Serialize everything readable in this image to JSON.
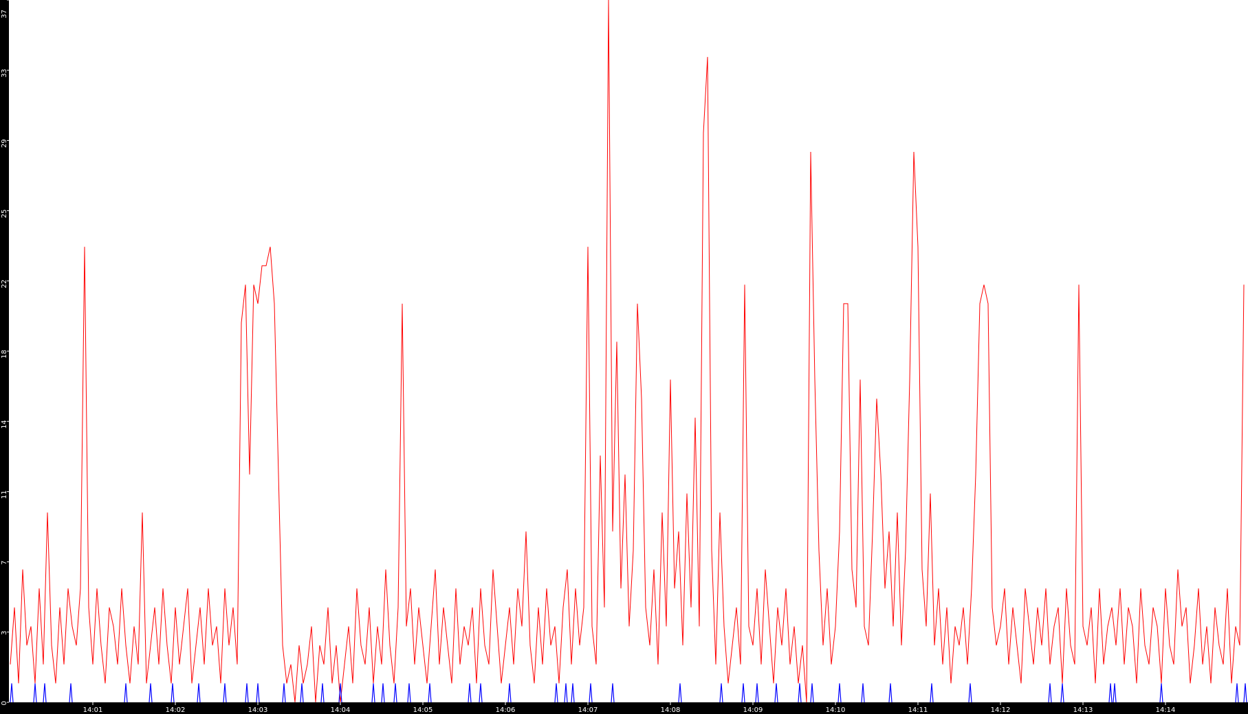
{
  "chart_data": {
    "type": "line",
    "title": "",
    "xlabel": "",
    "ylabel": "",
    "ylim": [
      0,
      37
    ],
    "xlim": [
      "14:00:00",
      "14:15:00"
    ],
    "grid": false,
    "legend": "none",
    "y_tick_labels": [
      "0",
      "3",
      "7",
      "11",
      "14",
      "18",
      "22",
      "25",
      "29",
      "33",
      "37"
    ],
    "x_tick_labels": [
      "14:01",
      "14:02",
      "14:03",
      "14:04",
      "14:05",
      "14:06",
      "14:07",
      "14:08",
      "14:09",
      "14:10",
      "14:11",
      "14:12",
      "14:13",
      "14:14"
    ],
    "colors": {
      "background": "#ffffff",
      "axis_strip": "#000000",
      "series_red": "#ff0000",
      "series_blue": "#0000ff",
      "tick_text": "#ffffff"
    },
    "series": [
      {
        "color": "#ff0000",
        "x_start": "14:00:00",
        "x_step_seconds": 3,
        "values": [
          2,
          5,
          1,
          7,
          3,
          4,
          1,
          6,
          2,
          10,
          3,
          1,
          5,
          2,
          6,
          4,
          3,
          6,
          24,
          5,
          2,
          6,
          3,
          1,
          5,
          4,
          2,
          6,
          3,
          1,
          4,
          2,
          10,
          1,
          3,
          5,
          2,
          6,
          3,
          1,
          5,
          2,
          4,
          6,
          1,
          3,
          5,
          2,
          6,
          3,
          4,
          1,
          6,
          3,
          5,
          2,
          20,
          22,
          12,
          22,
          21,
          23,
          23,
          24,
          21,
          12,
          3,
          1,
          2,
          0,
          3,
          1,
          2,
          4,
          0,
          3,
          2,
          5,
          1,
          3,
          0,
          2,
          4,
          1,
          6,
          3,
          2,
          5,
          1,
          4,
          2,
          7,
          3,
          1,
          5,
          21,
          4,
          6,
          2,
          5,
          3,
          1,
          4,
          7,
          2,
          5,
          3,
          1,
          6,
          2,
          4,
          3,
          5,
          1,
          6,
          3,
          2,
          7,
          4,
          1,
          3,
          5,
          2,
          6,
          4,
          9,
          3,
          1,
          5,
          2,
          6,
          3,
          4,
          1,
          5,
          7,
          2,
          6,
          3,
          5,
          24,
          4,
          2,
          13,
          5,
          37,
          9,
          19,
          6,
          12,
          4,
          8,
          21,
          16,
          5,
          3,
          7,
          2,
          10,
          4,
          17,
          6,
          9,
          3,
          11,
          5,
          15,
          4,
          30,
          34,
          8,
          2,
          10,
          4,
          1,
          3,
          5,
          2,
          22,
          4,
          3,
          6,
          2,
          7,
          4,
          1,
          5,
          3,
          6,
          2,
          4,
          1,
          3,
          0,
          29,
          17,
          8,
          3,
          6,
          2,
          4,
          9,
          21,
          21,
          7,
          5,
          17,
          4,
          3,
          9,
          16,
          12,
          6,
          9,
          4,
          10,
          3,
          8,
          17,
          29,
          24,
          7,
          4,
          11,
          3,
          6,
          2,
          5,
          1,
          4,
          3,
          5,
          2,
          6,
          12,
          21,
          22,
          21,
          5,
          3,
          4,
          6,
          2,
          5,
          3,
          1,
          6,
          4,
          2,
          5,
          3,
          6,
          2,
          4,
          5,
          1,
          6,
          3,
          2,
          22,
          4,
          3,
          5,
          1,
          6,
          2,
          4,
          5,
          3,
          6,
          2,
          5,
          4,
          1,
          6,
          3,
          2,
          5,
          4,
          1,
          6,
          3,
          2,
          7,
          4,
          5,
          1,
          3,
          6,
          2,
          4,
          1,
          5,
          3,
          2,
          6,
          1,
          4,
          3,
          22
        ]
      },
      {
        "color": "#0000ff",
        "baseline": 0,
        "points": [
          [
            "14:00:01",
            1
          ],
          [
            "14:00:18",
            1
          ],
          [
            "14:00:25",
            1
          ],
          [
            "14:00:44",
            1
          ],
          [
            "14:01:24",
            1
          ],
          [
            "14:01:42",
            1
          ],
          [
            "14:01:58",
            1
          ],
          [
            "14:02:17",
            1
          ],
          [
            "14:02:36",
            1
          ],
          [
            "14:02:52",
            1
          ],
          [
            "14:03:00",
            1
          ],
          [
            "14:03:19",
            1
          ],
          [
            "14:03:32",
            1
          ],
          [
            "14:03:47",
            1
          ],
          [
            "14:04:00",
            1
          ],
          [
            "14:04:24",
            1
          ],
          [
            "14:04:31",
            1
          ],
          [
            "14:04:40",
            1
          ],
          [
            "14:04:50",
            1
          ],
          [
            "14:05:05",
            1
          ],
          [
            "14:05:34",
            1
          ],
          [
            "14:05:42",
            1
          ],
          [
            "14:06:03",
            1
          ],
          [
            "14:06:37",
            1
          ],
          [
            "14:06:44",
            1
          ],
          [
            "14:06:49",
            1
          ],
          [
            "14:07:02",
            1
          ],
          [
            "14:07:18",
            1
          ],
          [
            "14:08:07",
            1
          ],
          [
            "14:08:37",
            1
          ],
          [
            "14:08:53",
            1
          ],
          [
            "14:09:03",
            1
          ],
          [
            "14:09:17",
            1
          ],
          [
            "14:09:34",
            1
          ],
          [
            "14:09:43",
            1
          ],
          [
            "14:10:03",
            1
          ],
          [
            "14:10:20",
            1
          ],
          [
            "14:10:40",
            1
          ],
          [
            "14:11:10",
            1
          ],
          [
            "14:11:38",
            1
          ],
          [
            "14:12:36",
            1
          ],
          [
            "14:12:45",
            1
          ],
          [
            "14:13:20",
            1
          ],
          [
            "14:13:23",
            1
          ],
          [
            "14:13:57",
            1
          ],
          [
            "14:14:52",
            1
          ],
          [
            "14:14:58",
            1
          ]
        ]
      }
    ]
  }
}
